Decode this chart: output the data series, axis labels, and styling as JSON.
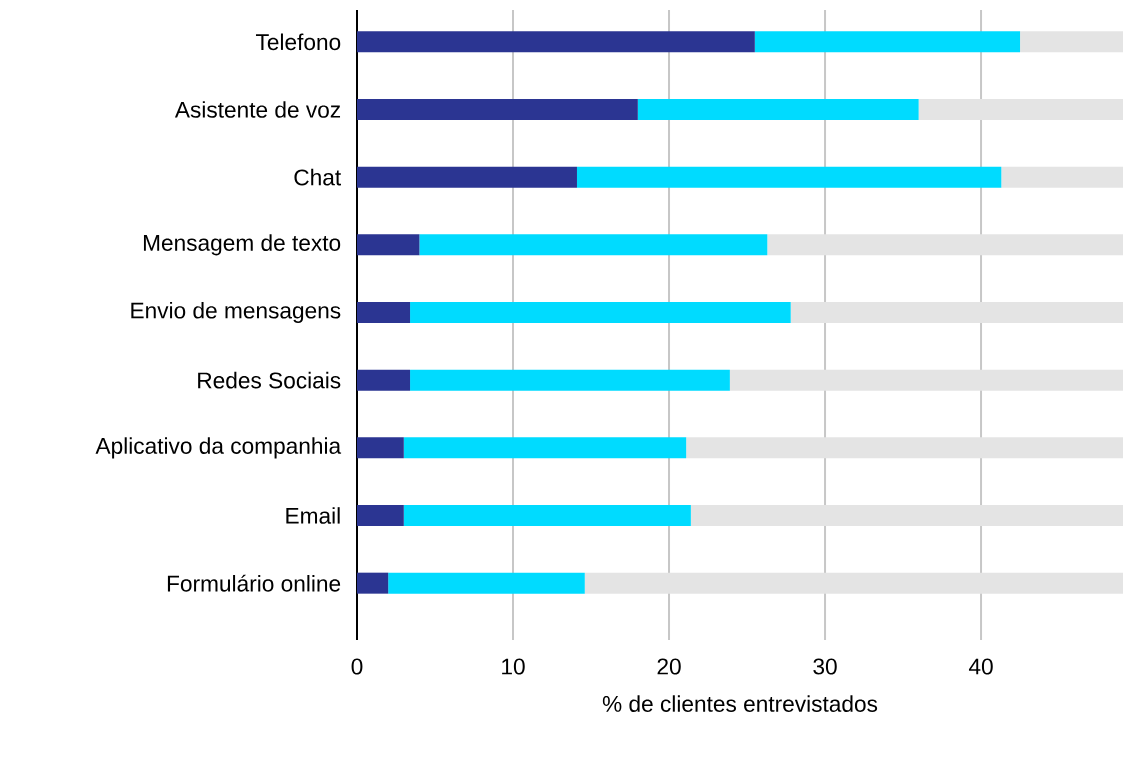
{
  "chart_data": {
    "type": "bar",
    "orientation": "horizontal",
    "stacked": true,
    "categories": [
      "Telefono",
      "Asistente de voz",
      "Chat",
      "Mensagem de texto",
      "Envio de mensagens",
      "Redes Sociais",
      "Aplicativo da companhia",
      "Email",
      "Formulário online"
    ],
    "series": [
      {
        "color": "#2b3592",
        "values": [
          25.5,
          18.0,
          14.1,
          4.0,
          3.4,
          3.4,
          3.0,
          3.0,
          2.0
        ]
      },
      {
        "color": "#00dbff",
        "values": [
          17.0,
          18.0,
          27.2,
          22.3,
          24.4,
          20.5,
          18.1,
          18.4,
          12.6
        ]
      },
      {
        "color": "#e4e4e4",
        "values": [
          6.6,
          13.1,
          7.8,
          22.8,
          21.3,
          25.2,
          28.0,
          27.7,
          34.5
        ]
      }
    ],
    "xlim": [
      0,
      49.1
    ],
    "xticks": [
      0,
      10,
      20,
      30,
      40
    ],
    "xlabel": "% de clientes entrevistados",
    "grid": "x"
  }
}
